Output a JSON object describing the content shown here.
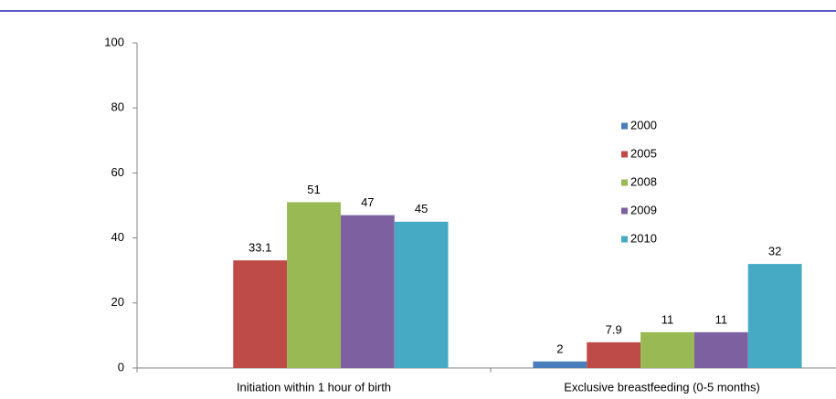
{
  "chart_data": {
    "type": "bar",
    "categories": [
      "Initiation within 1 hour of birth",
      "Exclusive breastfeeding (0-5 months)"
    ],
    "series": [
      {
        "name": "2000",
        "color": "#4a7ebb",
        "values": [
          null,
          2
        ]
      },
      {
        "name": "2005",
        "color": "#be4b48",
        "values": [
          33.1,
          7.9
        ]
      },
      {
        "name": "2008",
        "color": "#98b954",
        "values": [
          51,
          11
        ]
      },
      {
        "name": "2009",
        "color": "#7d60a0",
        "values": [
          47,
          11
        ]
      },
      {
        "name": "2010",
        "color": "#46aac5",
        "values": [
          45,
          32
        ]
      }
    ],
    "ylim": [
      0,
      100
    ],
    "yticks": [
      0,
      20,
      40,
      60,
      80,
      100
    ],
    "grid": false,
    "legend": "right"
  }
}
